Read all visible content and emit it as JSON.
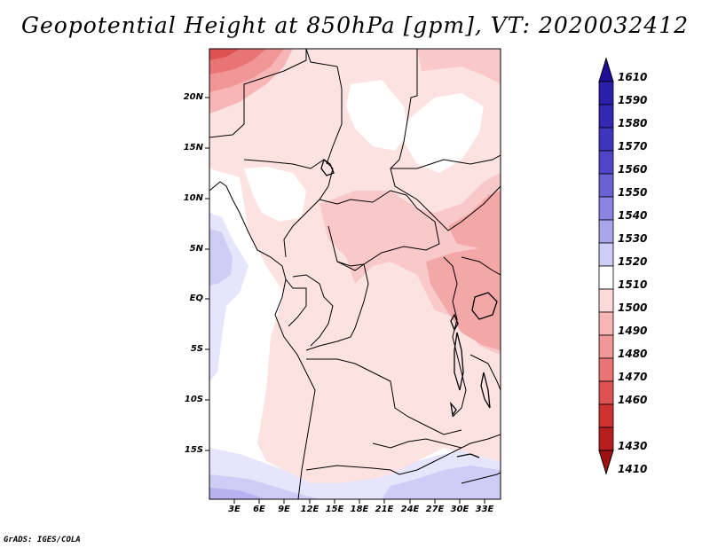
{
  "title": "Geopotential Height at 850hPa [gpm], VT: 2020032412",
  "credit": "GrADS: IGES/COLA",
  "map": {
    "region": "Central Africa",
    "lon_ticks": [
      "3E",
      "6E",
      "9E",
      "12E",
      "15E",
      "18E",
      "21E",
      "24E",
      "27E",
      "30E",
      "33E"
    ],
    "lat_ticks": [
      "20N",
      "15N",
      "10N",
      "5N",
      "EQ",
      "5S",
      "10S",
      "15S"
    ]
  },
  "colorbar": {
    "levels": [
      "1610",
      "1590",
      "1580",
      "1570",
      "1560",
      "1550",
      "1540",
      "1530",
      "1520",
      "1510",
      "1500",
      "1490",
      "1480",
      "1470",
      "1460",
      "1430",
      "1410"
    ],
    "colors": [
      "#1e0f96",
      "#2a1fa8",
      "#3328b4",
      "#3d35be",
      "#5045c8",
      "#6a62d4",
      "#8a84e0",
      "#aaa6ec",
      "#cfccf5",
      "#ffffff",
      "#fdd9d9",
      "#f7b5b5",
      "#f09696",
      "#e87474",
      "#de5252",
      "#cf3030",
      "#b81d1d",
      "#9e1212"
    ]
  }
}
